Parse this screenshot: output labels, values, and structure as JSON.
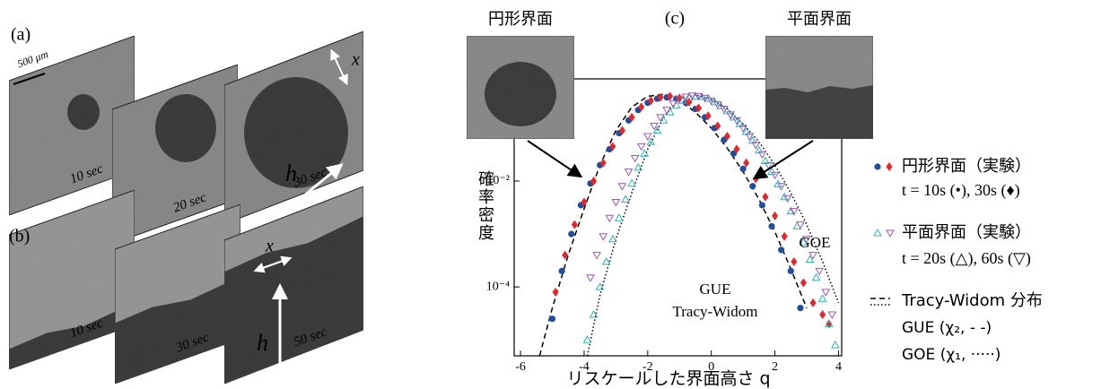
{
  "panels": {
    "a": {
      "label": "(a)",
      "scale_bar": "500 μm",
      "times": [
        "10 sec",
        "20 sec",
        "30 sec"
      ],
      "h": "h",
      "x": "x"
    },
    "b": {
      "label": "(b)",
      "times": [
        "10 sec",
        "30 sec",
        "50 sec"
      ],
      "h": "h",
      "x": "x"
    }
  },
  "chart_data": {
    "type": "scatter",
    "panel_label": "(c)",
    "insets": [
      "円形界面",
      "平面界面"
    ],
    "xlabel": "リスケールした界面高さ q",
    "ylabel": "確率密度",
    "xlim": [
      -6.2,
      4.1
    ],
    "xticks": [
      -6,
      -4,
      -2,
      0,
      2,
      4
    ],
    "ylim": [
      5e-06,
      0.85
    ],
    "yscale": "log",
    "yticks": [
      {
        "value": 0.0001,
        "label": "10⁻⁴"
      },
      {
        "value": 0.01,
        "label": "10⁻²"
      }
    ],
    "annotations": [
      "GOE",
      "GUE",
      "Tracy-Widom"
    ],
    "legend": [
      {
        "title": "円形界面（実験）",
        "detail": "t = 10s (•), 30s (♦)"
      },
      {
        "title": "平面界面（実験）",
        "detail": "t = 20s (△), 60s (▽)"
      },
      {
        "title": "Tracy-Widom 分布",
        "details": [
          "GUE (χ₂, - -)",
          "GOE (χ₁, ·····)"
        ]
      }
    ],
    "series": [
      {
        "kind": "line",
        "dash": "dashed",
        "color": "#000000",
        "x": [
          -5.4,
          -5,
          -4.5,
          -4,
          -3.5,
          -3,
          -2.5,
          -2,
          -1.5,
          -1,
          -0.5,
          0,
          0.5,
          1,
          1.5,
          2,
          2.5,
          3
        ],
        "values": [
          5e-06,
          4e-05,
          0.0004,
          0.003,
          0.02,
          0.09,
          0.25,
          0.4,
          0.43,
          0.33,
          0.2,
          0.1,
          0.042,
          0.015,
          0.0045,
          0.0011,
          0.00022,
          4e-05
        ]
      },
      {
        "kind": "line",
        "dash": "dotted",
        "color": "#000000",
        "x": [
          -3.9,
          -3.5,
          -3,
          -2.5,
          -2,
          -1.5,
          -1,
          -0.5,
          0,
          0.5,
          1,
          1.5,
          2,
          2.5,
          3,
          3.5,
          4
        ],
        "values": [
          5e-06,
          7e-05,
          0.0008,
          0.006,
          0.04,
          0.16,
          0.36,
          0.42,
          0.35,
          0.23,
          0.12,
          0.055,
          0.02,
          0.006,
          0.0015,
          0.0003,
          5e-05
        ]
      },
      {
        "kind": "marker",
        "marker": "circle",
        "color": "#1f4e9c",
        "x": [
          -5,
          -4.7,
          -4.4,
          -4.1,
          -3.8,
          -3.5,
          -3.2,
          -2.9,
          -2.6,
          -2.3,
          -2,
          -1.7,
          -1.4,
          -1.1,
          -0.8,
          -0.5,
          -0.2,
          0.1,
          0.4,
          0.7,
          1,
          1.3,
          1.6,
          1.9,
          2.2,
          2.5,
          2.8
        ],
        "values": [
          2.5e-05,
          0.0002,
          0.001,
          0.0035,
          0.009,
          0.02,
          0.04,
          0.08,
          0.14,
          0.22,
          0.3,
          0.36,
          0.38,
          0.36,
          0.3,
          0.23,
          0.16,
          0.1,
          0.06,
          0.033,
          0.017,
          0.008,
          0.0035,
          0.0014,
          0.0005,
          0.0002,
          4e-05
        ]
      },
      {
        "kind": "marker",
        "marker": "diamond",
        "color": "#e3262b",
        "x": [
          -4.9,
          -4.6,
          -4.3,
          -4,
          -3.7,
          -3.4,
          -3.1,
          -2.8,
          -2.5,
          -2.2,
          -1.9,
          -1.6,
          -1.3,
          -1,
          -0.7,
          -0.4,
          -0.1,
          0.2,
          0.5,
          0.8,
          1.1,
          1.4,
          1.7,
          2,
          2.3,
          2.6,
          2.9,
          3.2,
          3.5,
          3.7
        ],
        "values": [
          8e-05,
          0.0004,
          0.0015,
          0.004,
          0.01,
          0.022,
          0.045,
          0.09,
          0.16,
          0.25,
          0.33,
          0.38,
          0.4,
          0.37,
          0.31,
          0.24,
          0.17,
          0.11,
          0.07,
          0.04,
          0.022,
          0.011,
          0.005,
          0.0022,
          0.0009,
          0.0003,
          0.00012,
          5e-05,
          3e-05,
          2e-05
        ]
      },
      {
        "kind": "marker",
        "marker": "triangle-up",
        "color": "#2fb3b3",
        "x": [
          -3.9,
          -3.7,
          -3.5,
          -3.3,
          -3.1,
          -2.9,
          -2.7,
          -2.5,
          -2.3,
          -2.1,
          -1.9,
          -1.7,
          -1.5,
          -1.3,
          -1.1,
          -0.9,
          -0.7,
          -0.5,
          -0.3,
          -0.1,
          0.1,
          0.3,
          0.5,
          0.7,
          0.9,
          1.1,
          1.3,
          1.5,
          1.7,
          1.9,
          2.1,
          2.3,
          2.5,
          2.7,
          2.9,
          3.1,
          3.3,
          3.5,
          3.7,
          3.9
        ],
        "values": [
          1e-05,
          3e-05,
          0.0001,
          0.0003,
          0.0008,
          0.002,
          0.0045,
          0.009,
          0.018,
          0.033,
          0.055,
          0.09,
          0.14,
          0.2,
          0.27,
          0.33,
          0.38,
          0.4,
          0.39,
          0.36,
          0.31,
          0.26,
          0.21,
          0.16,
          0.12,
          0.085,
          0.058,
          0.038,
          0.024,
          0.015,
          0.0088,
          0.005,
          0.0027,
          0.0014,
          0.0007,
          0.00033,
          0.00015,
          6e-05,
          2e-05,
          8e-06
        ]
      },
      {
        "kind": "marker",
        "marker": "triangle-down",
        "color": "#9b59b6",
        "x": [
          -3.8,
          -3.6,
          -3.4,
          -3.2,
          -3,
          -2.8,
          -2.6,
          -2.4,
          -2.2,
          -2,
          -1.8,
          -1.6,
          -1.4,
          -1.2,
          -1,
          -0.8,
          -0.6,
          -0.4,
          -0.2,
          0,
          0.2,
          0.4,
          0.6,
          0.8,
          1,
          1.2,
          1.4,
          1.6,
          1.8,
          2,
          2.2,
          2.4,
          2.6,
          2.8,
          3,
          3.2,
          3.4,
          3.6,
          3.8
        ],
        "values": [
          0.00015,
          0.0004,
          0.0009,
          0.002,
          0.004,
          0.008,
          0.015,
          0.027,
          0.045,
          0.07,
          0.11,
          0.16,
          0.22,
          0.29,
          0.35,
          0.39,
          0.41,
          0.4,
          0.37,
          0.33,
          0.28,
          0.23,
          0.18,
          0.14,
          0.1,
          0.07,
          0.048,
          0.032,
          0.02,
          0.013,
          0.008,
          0.0047,
          0.0027,
          0.0015,
          0.0008,
          0.0004,
          0.0002,
          8e-05,
          3e-05
        ]
      }
    ]
  }
}
